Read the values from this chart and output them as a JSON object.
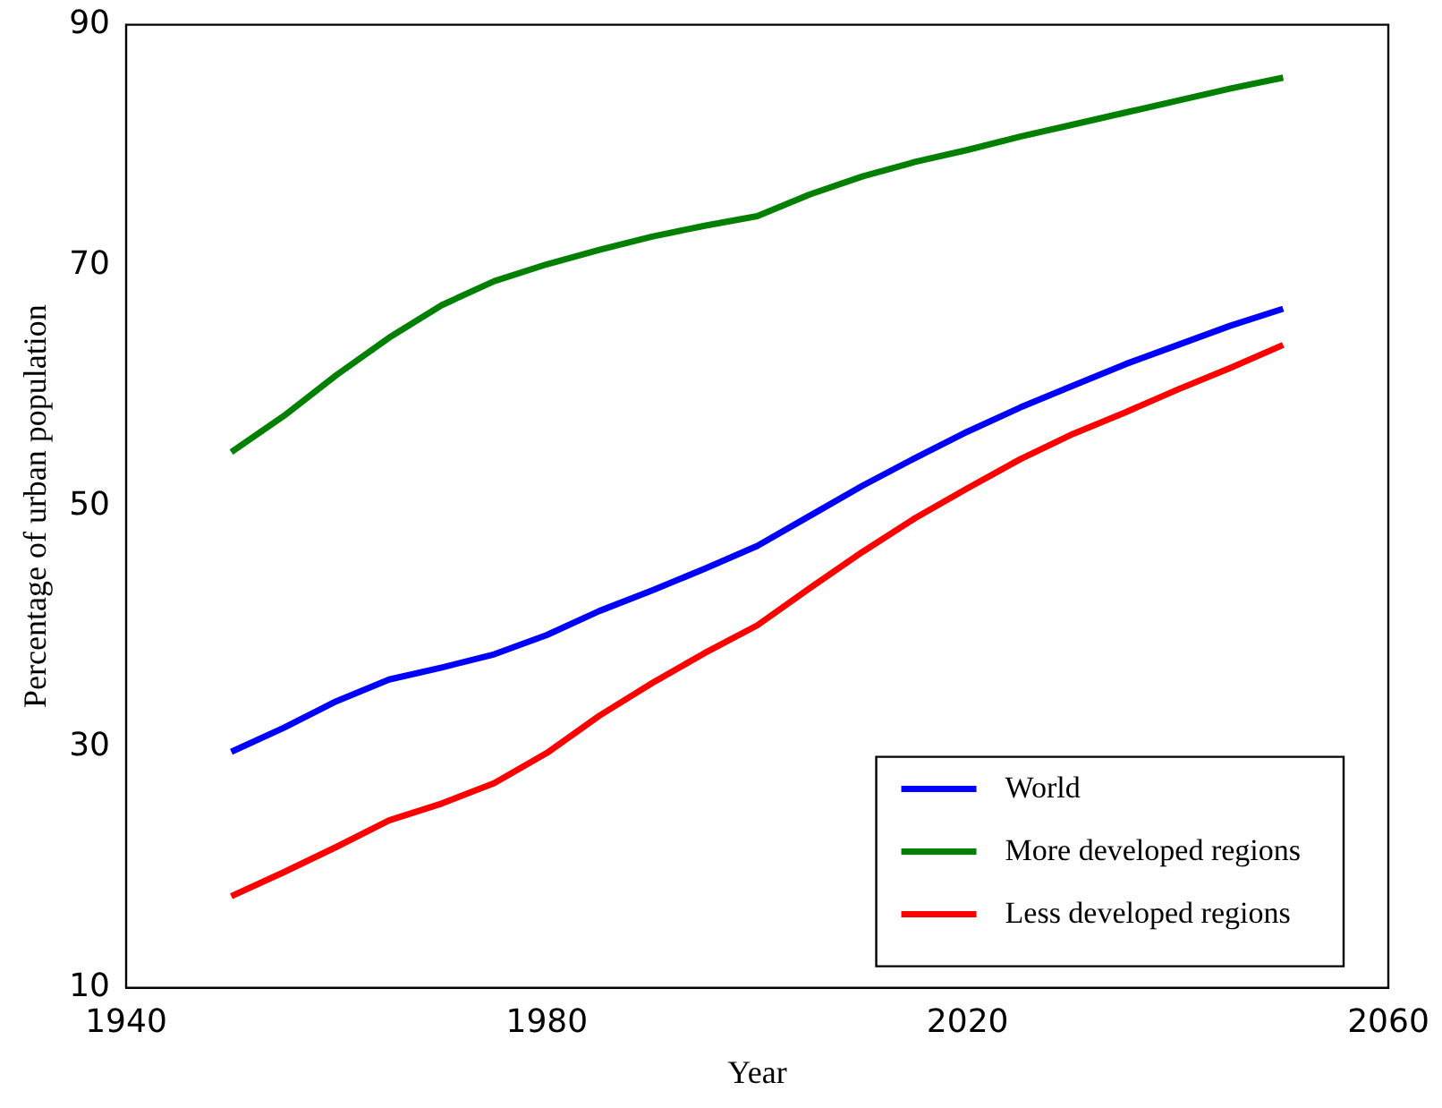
{
  "chart_data": {
    "type": "line",
    "xlabel": "Year",
    "ylabel": "Percentage of urban population",
    "x": [
      1950,
      1955,
      1960,
      1965,
      1970,
      1975,
      1980,
      1985,
      1990,
      1995,
      2000,
      2005,
      2010,
      2015,
      2020,
      2025,
      2030,
      2035,
      2040,
      2045,
      2050
    ],
    "series": [
      {
        "name": "World",
        "color": "#0000ff",
        "values": [
          29.6,
          31.6,
          33.8,
          35.6,
          36.6,
          37.7,
          39.3,
          41.3,
          43.0,
          44.8,
          46.7,
          49.2,
          51.7,
          54.0,
          56.2,
          58.2,
          60.0,
          61.8,
          63.4,
          65.0,
          66.4
        ]
      },
      {
        "name": "More developed regions",
        "color": "#008000",
        "values": [
          54.5,
          57.5,
          60.9,
          64.0,
          66.7,
          68.7,
          70.1,
          71.3,
          72.4,
          73.3,
          74.1,
          75.9,
          77.4,
          78.6,
          79.6,
          80.7,
          81.7,
          82.7,
          83.7,
          84.7,
          85.6
        ]
      },
      {
        "name": "Less developed regions",
        "color": "#ff0000",
        "values": [
          17.6,
          19.6,
          21.7,
          23.9,
          25.3,
          27.0,
          29.5,
          32.6,
          35.3,
          37.8,
          40.1,
          43.2,
          46.2,
          49.0,
          51.5,
          53.9,
          56.0,
          57.8,
          59.7,
          61.5,
          63.4
        ]
      }
    ],
    "xlim": [
      1940,
      2060
    ],
    "xticks": [
      1940,
      1980,
      2020,
      2060
    ],
    "ylim": [
      10,
      90
    ],
    "yticks": [
      10,
      30,
      50,
      70,
      90
    ],
    "grid": false,
    "legend": "bottom right",
    "marker": "none",
    "line_style": "solid"
  }
}
